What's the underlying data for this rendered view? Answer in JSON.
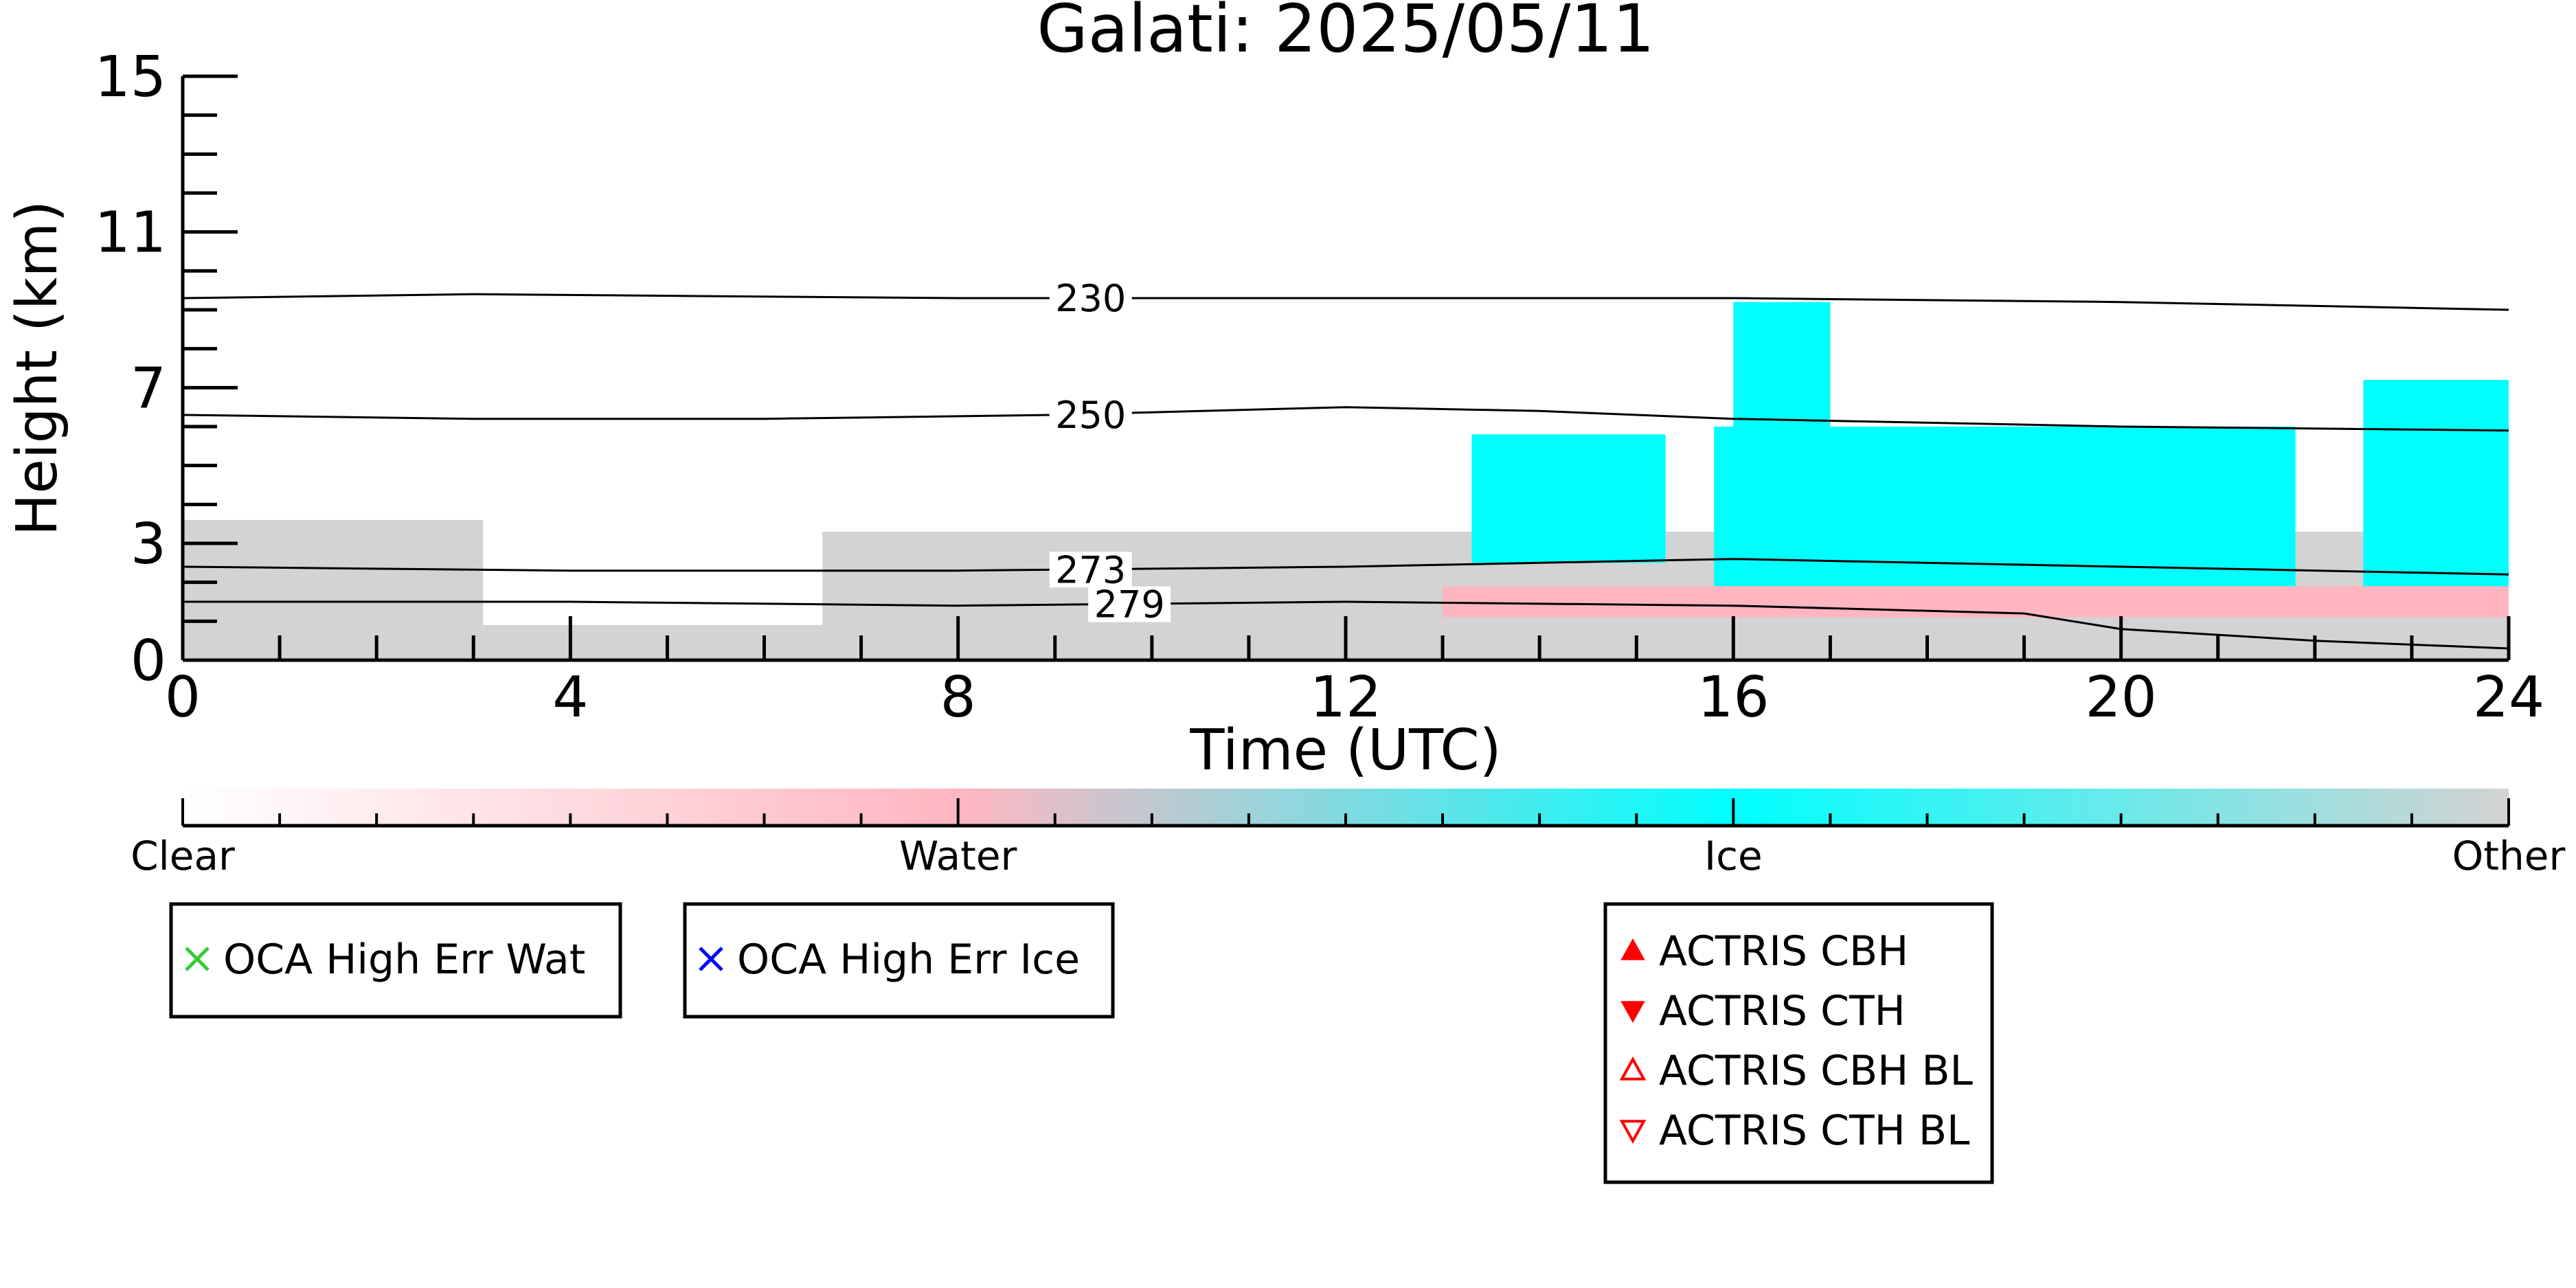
{
  "title": "Galati: 2025/05/11",
  "chart_data": {
    "type": "heatmap",
    "title": "Galati: 2025/05/11",
    "xlabel": "Time (UTC)",
    "ylabel": "Height (km)",
    "xlim": [
      0,
      24
    ],
    "ylim": [
      0,
      15
    ],
    "x_ticks": [
      0,
      4,
      8,
      12,
      16,
      20,
      24
    ],
    "y_ticks": [
      0,
      3,
      7,
      11,
      15
    ],
    "category_colors": {
      "Clear": "#ffffff",
      "Water": "#ffb6c1",
      "Ice": "#00ffff",
      "Other": "#d3d3d3"
    },
    "colorbar": {
      "labels": [
        "Clear",
        "Water",
        "Ice",
        "Other"
      ],
      "stops": [
        "#ffffff",
        "#ffb6c1",
        "#00ffff",
        "#d3d3d3"
      ]
    },
    "regions": [
      {
        "category": "Other",
        "x": [
          0,
          3.1
        ],
        "y": [
          0,
          3.6
        ]
      },
      {
        "category": "Other",
        "x": [
          3.1,
          6.6
        ],
        "y": [
          0,
          0.9
        ]
      },
      {
        "category": "Other",
        "x": [
          6.6,
          24
        ],
        "y": [
          0,
          3.3
        ]
      },
      {
        "category": "Ice",
        "x": [
          13.3,
          15.3
        ],
        "y": [
          2.5,
          5.8
        ]
      },
      {
        "category": "Ice",
        "x": [
          15.8,
          21.8
        ],
        "y": [
          1.9,
          6.0
        ]
      },
      {
        "category": "Ice",
        "x": [
          16.0,
          17.0
        ],
        "y": [
          5.6,
          9.2
        ]
      },
      {
        "category": "Ice",
        "x": [
          22.5,
          24
        ],
        "y": [
          1.5,
          7.2
        ]
      },
      {
        "category": "Water",
        "x": [
          13.0,
          24
        ],
        "y": [
          1.1,
          1.9
        ]
      }
    ],
    "contours": [
      {
        "label": "230",
        "x": [
          0,
          3,
          8,
          12,
          16,
          20,
          24
        ],
        "y": [
          9.3,
          9.4,
          9.3,
          9.3,
          9.3,
          9.2,
          9.0
        ]
      },
      {
        "label": "250",
        "x": [
          0,
          3,
          6,
          9,
          12,
          14,
          16,
          20,
          24
        ],
        "y": [
          6.3,
          6.2,
          6.2,
          6.3,
          6.5,
          6.4,
          6.2,
          6.0,
          5.9
        ]
      },
      {
        "label": "273",
        "x": [
          0,
          4,
          8,
          12,
          16,
          20,
          24
        ],
        "y": [
          2.4,
          2.3,
          2.3,
          2.4,
          2.6,
          2.4,
          2.2
        ]
      },
      {
        "label": "279",
        "x": [
          0,
          4,
          8,
          12,
          16,
          19,
          20,
          22,
          24
        ],
        "y": [
          1.5,
          1.5,
          1.4,
          1.5,
          1.4,
          1.2,
          0.8,
          0.5,
          0.3
        ]
      }
    ],
    "legend_groups": [
      {
        "items": [
          {
            "marker": "x",
            "color": "#33cc33",
            "label": "OCA High Err Wat"
          }
        ]
      },
      {
        "items": [
          {
            "marker": "x",
            "color": "#0000ff",
            "label": "OCA High Err Ice"
          }
        ]
      },
      {
        "items": [
          {
            "marker": "triangle-up-filled",
            "color": "#ff0000",
            "label": "ACTRIS CBH"
          },
          {
            "marker": "triangle-down-filled",
            "color": "#ff0000",
            "label": "ACTRIS CTH"
          },
          {
            "marker": "triangle-up-open",
            "color": "#ff0000",
            "label": "ACTRIS CBH BL"
          },
          {
            "marker": "triangle-down-open",
            "color": "#ff0000",
            "label": "ACTRIS CTH BL"
          }
        ]
      }
    ]
  }
}
